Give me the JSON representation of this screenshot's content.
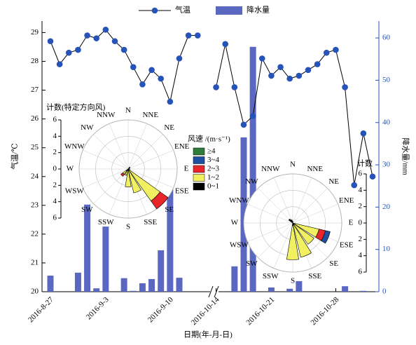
{
  "chart_data": [
    {
      "type": "combo",
      "xlabel": "日期(年-月-日)",
      "ylabel": "气温/℃",
      "y2label": "降水量/mm",
      "categories": [
        "2016-8-27",
        null,
        null,
        null,
        null,
        null,
        "2016-9-3",
        null,
        null,
        null,
        null,
        null,
        null,
        "2016-9-10",
        null,
        null,
        null,
        null,
        "2016-10-14",
        null,
        null,
        null,
        null,
        null,
        "2016-10-21",
        null,
        null,
        null,
        null,
        null,
        null,
        "2016-10-28",
        null,
        null,
        null,
        null
      ],
      "series": [
        {
          "name": "气温",
          "type": "line",
          "color": "#2553b8",
          "values": [
            28.7,
            27.9,
            28.3,
            28.4,
            28.9,
            28.8,
            29.1,
            28.7,
            28.4,
            27.8,
            27.2,
            27.7,
            27.4,
            26.6,
            28.1,
            28.9,
            28.9,
            null,
            27.1,
            28.6,
            27.1,
            25.8,
            26.1,
            28.1,
            27.5,
            27.8,
            27.4,
            27.5,
            27.7,
            27.9,
            28.3,
            28.4,
            27.1,
            23.7,
            25.5,
            24.0
          ]
        },
        {
          "name": "降水量",
          "type": "bar",
          "axis": "y2",
          "color": "#5a68c2",
          "values": [
            3.8,
            0,
            0,
            4.5,
            20.6,
            0.8,
            15.4,
            0,
            3.2,
            0.2,
            2,
            3,
            9.8,
            31.8,
            3.3,
            0,
            0,
            null,
            0,
            0,
            6,
            36.5,
            57.9,
            0,
            1,
            0,
            0.7,
            2.5,
            0,
            0,
            0,
            0,
            1.3,
            0,
            0.2,
            0
          ]
        }
      ],
      "ylim": [
        20,
        29.4
      ],
      "yticks": [
        20,
        21,
        22,
        23,
        24,
        25,
        26,
        27,
        28,
        29
      ],
      "y2lim": [
        0,
        64
      ],
      "y2ticks": [
        0,
        10,
        20,
        30,
        40,
        50,
        60
      ]
    },
    {
      "type": "windrose",
      "title": "计数(特定方向风)",
      "legend_title": "风速 /(m·s⁻¹)",
      "directions": [
        "N",
        "NNE",
        "NE",
        "ENE",
        "E",
        "ESE",
        "SE",
        "SSE",
        "S",
        "SSW",
        "SW",
        "WSW",
        "W",
        "WNW",
        "NW",
        "NNW"
      ],
      "rlim": [
        0,
        6
      ],
      "rticks": [
        0,
        2,
        4,
        6
      ],
      "series": [
        {
          "name": "≥4",
          "color": "#2e7d3a",
          "values": [
            0,
            0,
            0,
            0,
            0,
            0,
            0,
            0,
            0,
            0,
            0,
            0,
            0,
            0,
            0,
            0
          ]
        },
        {
          "name": "3~4",
          "color": "#1f4fa0",
          "values": [
            0,
            0,
            0,
            0,
            0,
            0,
            0,
            0,
            0,
            0,
            0,
            0,
            0,
            0,
            0,
            0
          ]
        },
        {
          "name": "2~3",
          "color": "#e8262a",
          "values": [
            0,
            0,
            0,
            0,
            0,
            0,
            1.2,
            0,
            0,
            0,
            0.3,
            0,
            0,
            0,
            0,
            0
          ]
        },
        {
          "name": "1~2",
          "color": "#f0f060",
          "values": [
            0,
            0,
            0,
            0,
            0,
            0,
            4.6,
            3.0,
            2.0,
            0.8,
            0.5,
            0,
            0,
            0,
            0,
            0
          ]
        },
        {
          "name": "0~1",
          "color": "#000000",
          "values": [
            0,
            0,
            0.3,
            0,
            0.2,
            0,
            0.2,
            0,
            0.2,
            0,
            0.3,
            0,
            0,
            0,
            0,
            0
          ]
        }
      ]
    },
    {
      "type": "windrose",
      "title": "计数",
      "directions": [
        "N",
        "NNE",
        "NE",
        "ENE",
        "E",
        "ESE",
        "SE",
        "SSE",
        "S",
        "SSW",
        "SW",
        "WSW",
        "W",
        "WNW",
        "NW",
        "NNW"
      ],
      "rlim": [
        0,
        6
      ],
      "rticks": [
        0,
        2,
        4,
        6
      ],
      "series": [
        {
          "color": "#2e7d3a",
          "values": [
            0,
            0,
            0,
            0,
            0,
            0,
            0,
            0,
            0,
            0,
            0,
            0,
            0,
            0,
            0,
            0
          ]
        },
        {
          "color": "#1f4fa0",
          "values": [
            0,
            0,
            0,
            0,
            0,
            0.6,
            0,
            0,
            0,
            0,
            0,
            0,
            0,
            0,
            0,
            0
          ]
        },
        {
          "color": "#e8262a",
          "values": [
            0,
            0,
            0,
            0,
            0,
            0.8,
            0,
            0,
            0,
            0,
            0,
            0,
            0,
            0,
            0,
            0
          ]
        },
        {
          "color": "#f0f060",
          "values": [
            0,
            0,
            0,
            0,
            0,
            3.0,
            3.2,
            4.0,
            4.2,
            0,
            0,
            0,
            0,
            0,
            0,
            0
          ]
        },
        {
          "color": "#000000",
          "values": [
            0.2,
            0,
            0,
            0,
            0,
            0.3,
            0,
            0.3,
            0.3,
            0,
            0,
            0,
            0,
            0,
            0.6,
            0.4
          ]
        }
      ]
    }
  ]
}
